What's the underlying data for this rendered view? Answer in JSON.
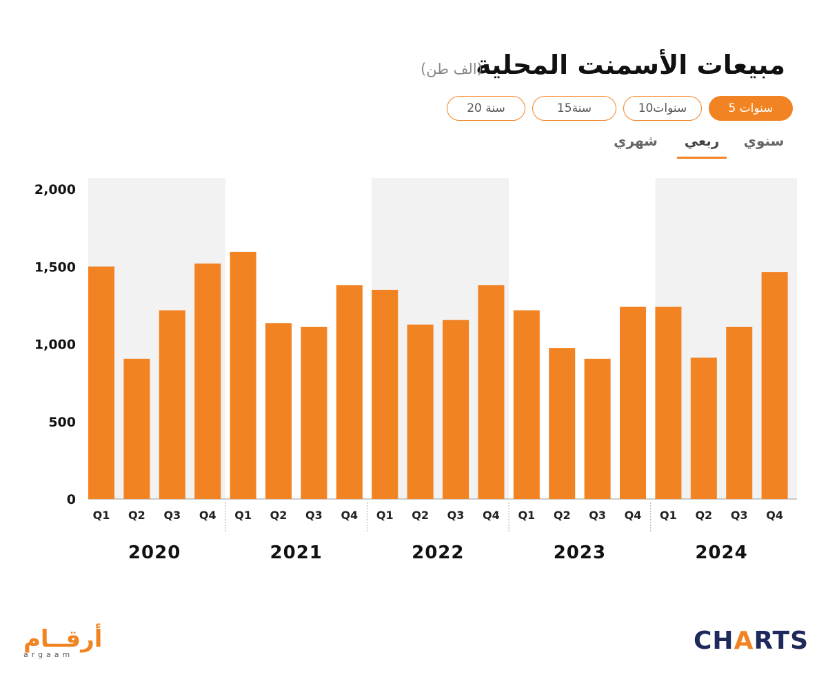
{
  "header": {
    "title": "مبيعات الأسمنت المحلية",
    "unit": "(الف طن)"
  },
  "range_buttons": [
    {
      "label": "5 سنوات",
      "active": true
    },
    {
      "label": "10سنوات",
      "active": false
    },
    {
      "label": "15سنة",
      "active": false
    },
    {
      "label": "20 سنة",
      "active": false
    }
  ],
  "frequency_tabs": [
    {
      "label": "سنوي",
      "active": false
    },
    {
      "label": "ربعي",
      "active": true
    },
    {
      "label": "شهري",
      "active": false
    }
  ],
  "colors": {
    "bar": "#f28322",
    "band": "#f2f2f2",
    "accent": "#f28322",
    "brand_dark": "#1f2a5c"
  },
  "chart_data": {
    "type": "bar",
    "title": "مبيعات الأسمنت المحلية",
    "ylabel": "",
    "xlabel": "",
    "ylim": [
      0,
      2000
    ],
    "yticks": [
      "2,000",
      "1,500",
      "1,000",
      "500",
      "0"
    ],
    "ytick_values": [
      2000,
      1500,
      1000,
      500,
      0
    ],
    "grid": false,
    "legend": "none",
    "groups": [
      {
        "year": "2020",
        "quarters": [
          "Q1",
          "Q2",
          "Q3",
          "Q4"
        ],
        "values": [
          1500,
          905,
          1218,
          1520
        ]
      },
      {
        "year": "2021",
        "quarters": [
          "Q1",
          "Q2",
          "Q3",
          "Q4"
        ],
        "values": [
          1595,
          1135,
          1110,
          1380
        ]
      },
      {
        "year": "2022",
        "quarters": [
          "Q1",
          "Q2",
          "Q3",
          "Q4"
        ],
        "values": [
          1350,
          1125,
          1155,
          1380
        ]
      },
      {
        "year": "2023",
        "quarters": [
          "Q1",
          "Q2",
          "Q3",
          "Q4"
        ],
        "values": [
          1218,
          975,
          905,
          1240
        ]
      },
      {
        "year": "2024",
        "quarters": [
          "Q1",
          "Q2",
          "Q3",
          "Q4"
        ],
        "values": [
          1240,
          912,
          1110,
          1465
        ]
      }
    ]
  },
  "branding": {
    "charts_logo_main": "CH",
    "charts_logo_accent": "A",
    "charts_logo_tail": "RTS",
    "argaam_logo_ar": "أرقــام",
    "argaam_logo_en": "argaam"
  }
}
